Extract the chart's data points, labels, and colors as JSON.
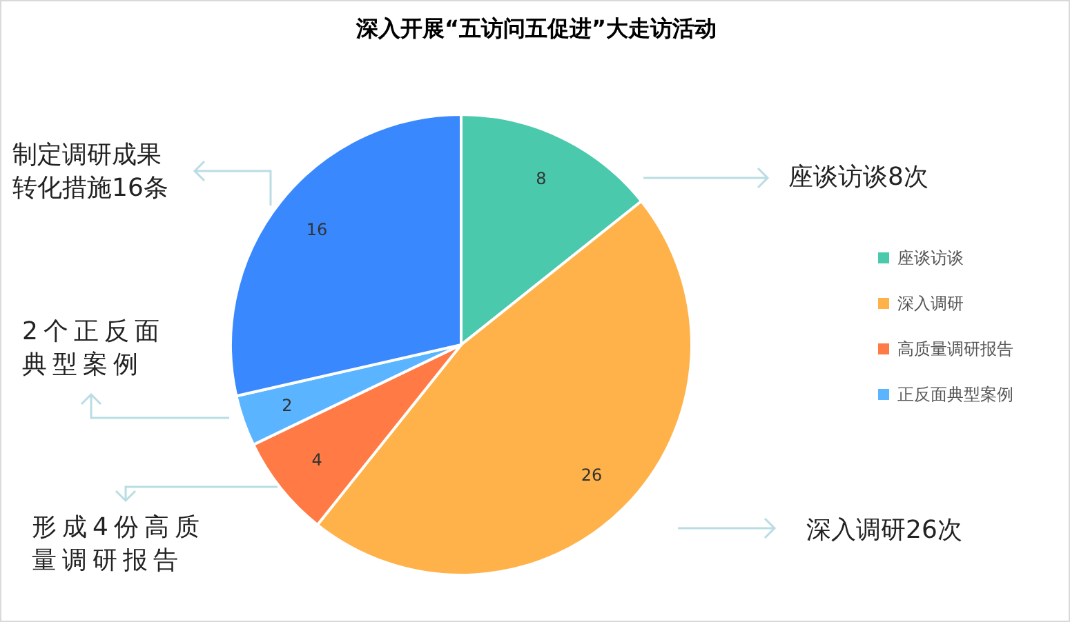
{
  "chart_data": {
    "type": "pie",
    "title": "深入开展“五访问五促进”大走访活动",
    "categories": [
      "座谈访谈",
      "深入调研",
      "高质量调研报告",
      "正反面典型案例",
      null
    ],
    "values": [
      8,
      26,
      4,
      2,
      16
    ],
    "colors": [
      "#4ac9ad",
      "#ffb24a",
      "#ff7a45",
      "#5bb4ff",
      "#3a88fd"
    ],
    "data_labels": true,
    "legend": "right",
    "annotations": [
      "座谈访谈8次",
      "深入调研26次",
      "形成4份高质量调研报告",
      "2个正反面典型案例",
      "制定调研成果转化措施16条"
    ]
  }
}
